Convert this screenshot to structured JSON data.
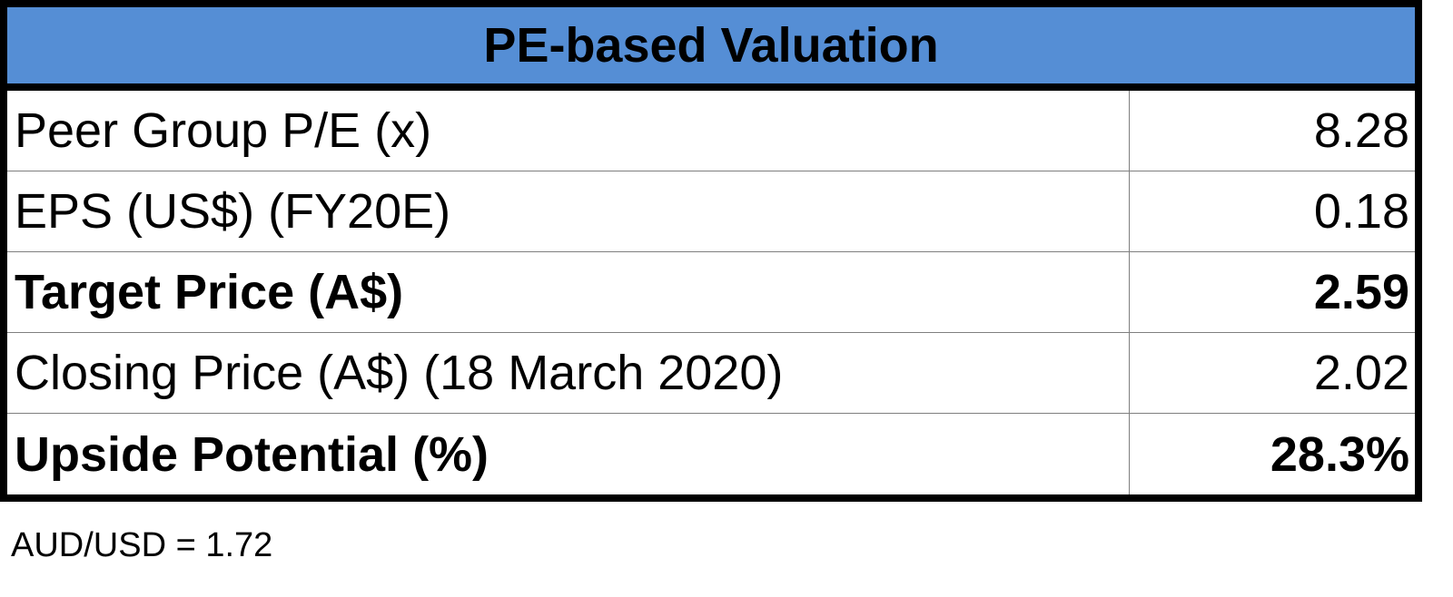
{
  "header": {
    "title": "PE-based Valuation"
  },
  "table": {
    "rows": [
      [
        "Peer Group P/E (x)",
        "8.28"
      ],
      [
        "EPS (US$) (FY20E)",
        "0.18"
      ],
      [
        "Target Price (A$)",
        "2.59"
      ],
      [
        "Closing Price (A$) (18 March 2020)",
        "2.02"
      ],
      [
        "Upside Potential (%)",
        "28.3%"
      ]
    ]
  },
  "footnote": "AUD/USD = 1.72"
}
